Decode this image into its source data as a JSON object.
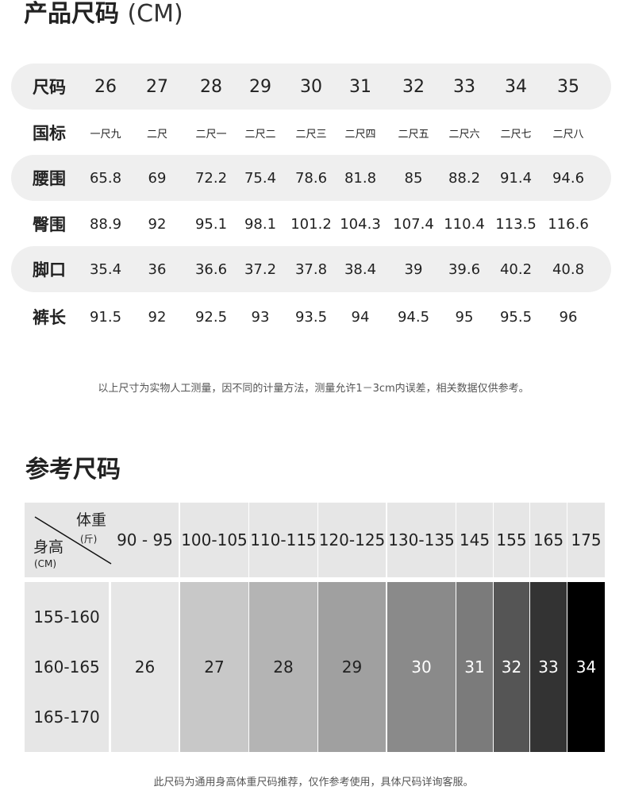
{
  "product": {
    "title": "产品尺码",
    "unit": "(CM)",
    "rows": [
      {
        "label": "尺码",
        "values": [
          "26",
          "27",
          "28",
          "29",
          "30",
          "31",
          "32",
          "33",
          "34",
          "35"
        ]
      },
      {
        "label": "国标",
        "values": [
          "一尺九",
          "二尺",
          "二尺一",
          "二尺二",
          "二尺三",
          "二尺四",
          "二尺五",
          "二尺六",
          "二尺七",
          "二尺八"
        ]
      },
      {
        "label": "腰围",
        "values": [
          "65.8",
          "69",
          "72.2",
          "75.4",
          "78.6",
          "81.8",
          "85",
          "88.2",
          "91.4",
          "94.6"
        ]
      },
      {
        "label": "臀围",
        "values": [
          "88.9",
          "92",
          "95.1",
          "98.1",
          "101.2",
          "104.3",
          "107.4",
          "110.4",
          "113.5",
          "116.6"
        ]
      },
      {
        "label": "脚口",
        "values": [
          "35.4",
          "36",
          "36.6",
          "37.2",
          "37.8",
          "38.4",
          "39",
          "39.6",
          "40.2",
          "40.8"
        ]
      },
      {
        "label": "裤长",
        "values": [
          "91.5",
          "92",
          "92.5",
          "93",
          "93.5",
          "94",
          "94.5",
          "95",
          "95.5",
          "96"
        ]
      }
    ],
    "note": "以上尺寸为实物人工测量，因不同的计量方法，测量允许1－3cm内误差，相关数据仅供参考。"
  },
  "reference": {
    "title": "参考尺码",
    "corner": {
      "weight": "体重",
      "weight_unit": "(斤)",
      "height": "身高",
      "height_unit": "(CM)"
    },
    "weights": [
      "90 - 95",
      "100-105",
      "110-115",
      "120-125",
      "130-135",
      "145",
      "155",
      "165",
      "175"
    ],
    "heights": [
      "155-160",
      "160-165",
      "165-170"
    ],
    "sizes": [
      "26",
      "27",
      "28",
      "29",
      "30",
      "31",
      "32",
      "33",
      "34"
    ],
    "colors": [
      "#e6e6e6",
      "#c8c8c8",
      "#b4b4b4",
      "#a0a0a0",
      "#8a8a8a",
      "#7b7b7b",
      "#555555",
      "#333333",
      "#000000"
    ],
    "note": "此尺码为通用身高体重尺码推荐，仅作参考使用，具体尺码详询客服。"
  }
}
